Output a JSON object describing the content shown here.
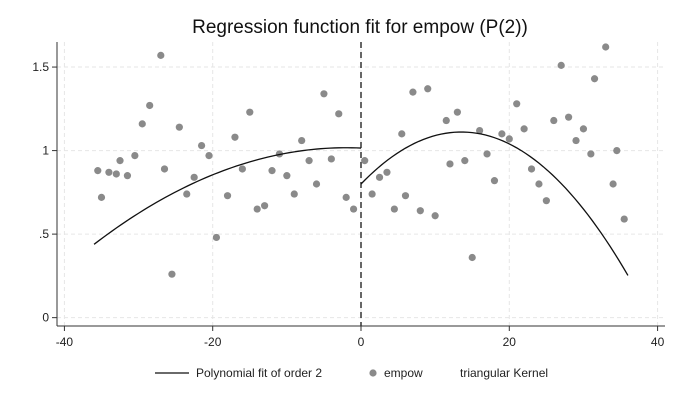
{
  "chart_data": {
    "type": "scatter",
    "title": "Regression function fit for empow (P(2))",
    "xlabel": "",
    "ylabel": "",
    "xlim": [
      -41,
      41
    ],
    "ylim": [
      -0.05,
      1.65
    ],
    "x_ticks": [
      -40,
      -20,
      0,
      20,
      40
    ],
    "x_tick_labels": [
      "-40",
      "-20",
      "0",
      "20",
      "40"
    ],
    "y_ticks": [
      0,
      0.5,
      1,
      1.5
    ],
    "y_tick_labels": [
      "0",
      ".5",
      "1",
      "1.5"
    ],
    "grid": true,
    "cutoff": 0,
    "legend": {
      "position": "bottom",
      "entries": [
        {
          "label": "Polynomial fit of order 2",
          "kind": "line",
          "color": "#111111"
        },
        {
          "label": "empow",
          "kind": "marker",
          "color": "#8a8a8a"
        },
        {
          "label": "triangular Kernel",
          "kind": "none",
          "color": ""
        }
      ]
    },
    "colors": {
      "points": "#8a8a8a",
      "fit": "#111111",
      "cutoff": "#333333",
      "grid": "#e6e6e6"
    },
    "series": [
      {
        "name": "empow",
        "kind": "scatter",
        "points": [
          [
            -35.5,
            0.88
          ],
          [
            -35,
            0.72
          ],
          [
            -34,
            0.87
          ],
          [
            -33,
            0.86
          ],
          [
            -32.5,
            0.94
          ],
          [
            -31.5,
            0.85
          ],
          [
            -30.5,
            0.97
          ],
          [
            -29.5,
            1.16
          ],
          [
            -28.5,
            1.27
          ],
          [
            -27,
            1.57
          ],
          [
            -26.5,
            0.89
          ],
          [
            -25.5,
            0.26
          ],
          [
            -24.5,
            1.14
          ],
          [
            -23.5,
            0.74
          ],
          [
            -22.5,
            0.84
          ],
          [
            -21.5,
            1.03
          ],
          [
            -20.5,
            0.97
          ],
          [
            -19.5,
            0.48
          ],
          [
            -18,
            0.73
          ],
          [
            -17,
            1.08
          ],
          [
            -16,
            0.89
          ],
          [
            -15,
            1.23
          ],
          [
            -14,
            0.65
          ],
          [
            -13,
            0.67
          ],
          [
            -12,
            0.88
          ],
          [
            -11,
            0.98
          ],
          [
            -10,
            0.85
          ],
          [
            -9,
            0.74
          ],
          [
            -8,
            1.06
          ],
          [
            -7,
            0.94
          ],
          [
            -6,
            0.8
          ],
          [
            -5,
            1.34
          ],
          [
            -4,
            0.95
          ],
          [
            -3,
            1.22
          ],
          [
            -2,
            0.72
          ],
          [
            -1,
            0.65
          ],
          [
            0.5,
            0.94
          ],
          [
            1.5,
            0.74
          ],
          [
            2.5,
            0.84
          ],
          [
            3.5,
            0.87
          ],
          [
            4.5,
            0.65
          ],
          [
            5.5,
            1.1
          ],
          [
            6,
            0.73
          ],
          [
            7,
            1.35
          ],
          [
            8,
            0.64
          ],
          [
            9,
            1.37
          ],
          [
            10,
            0.61
          ],
          [
            11.5,
            1.18
          ],
          [
            12,
            0.92
          ],
          [
            13,
            1.23
          ],
          [
            14,
            0.94
          ],
          [
            15,
            0.36
          ],
          [
            16,
            1.12
          ],
          [
            17,
            0.98
          ],
          [
            18,
            0.82
          ],
          [
            19,
            1.1
          ],
          [
            20,
            1.07
          ],
          [
            21,
            1.28
          ],
          [
            22,
            1.13
          ],
          [
            23,
            0.89
          ],
          [
            24,
            0.8
          ],
          [
            25,
            0.7
          ],
          [
            26,
            1.18
          ],
          [
            27,
            1.51
          ],
          [
            28,
            1.2
          ],
          [
            29,
            1.06
          ],
          [
            30,
            1.13
          ],
          [
            31,
            0.98
          ],
          [
            31.5,
            1.43
          ],
          [
            33,
            1.62
          ],
          [
            34,
            0.8
          ],
          [
            34.5,
            1.0
          ],
          [
            35.5,
            0.59
          ]
        ]
      },
      {
        "name": "Polynomial fit of order 2",
        "kind": "line",
        "segments": [
          {
            "from": -36,
            "to": 0,
            "coef": [
              1.015,
              -0.002,
              -0.0005
            ]
          },
          {
            "from": 0,
            "to": 36,
            "coef": [
              0.8,
              0.046,
              -0.0017
            ]
          }
        ]
      }
    ]
  }
}
